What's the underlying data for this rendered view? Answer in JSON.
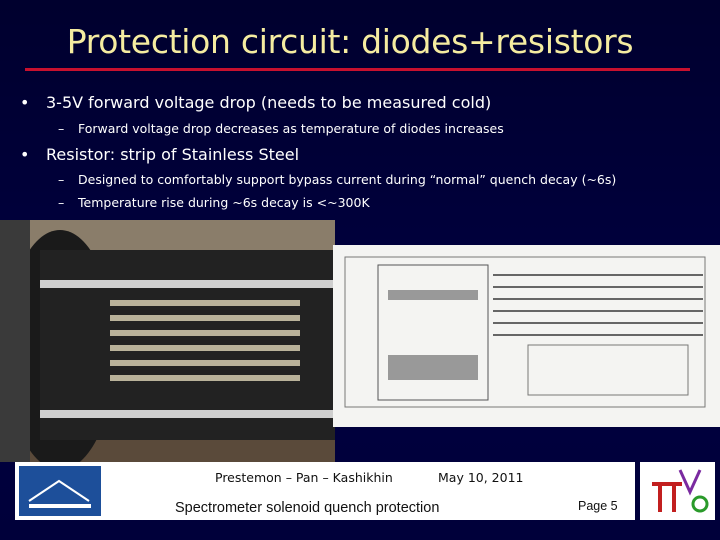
{
  "header": {
    "title": "Protection circuit: diodes+resistors"
  },
  "bullets": [
    {
      "text": "3-5V forward voltage drop  (needs to be measured cold)",
      "sub": [
        "Forward voltage drop decreases as temperature of diodes increases"
      ]
    },
    {
      "text": "Resistor: strip of Stainless Steel",
      "sub": [
        "Designed to comfortably support bypass current during “normal” quench decay (~6s)",
        "Temperature rise during ~6s decay is <~300K"
      ]
    }
  ],
  "footer": {
    "authors": "Prestemon – Pan – Kashikhin",
    "date": "May 10, 2011",
    "subject": "Spectrometer solenoid quench protection",
    "page": "Page 5"
  }
}
